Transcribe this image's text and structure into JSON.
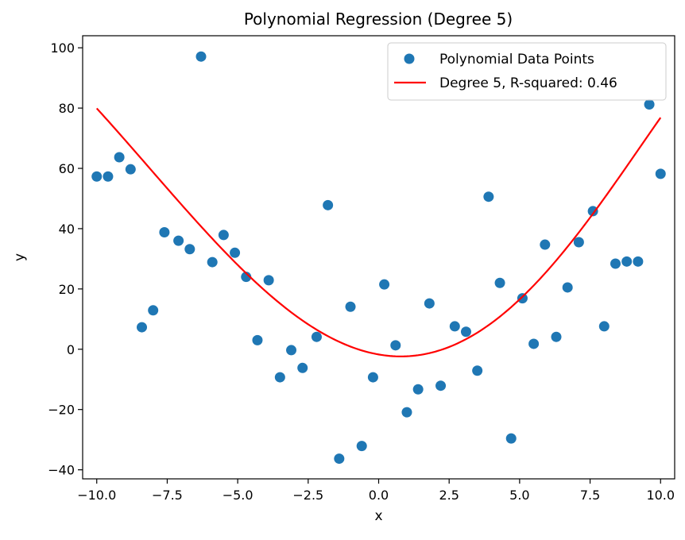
{
  "chart_data": {
    "type": "scatter",
    "title": "Polynomial Regression (Degree 5)",
    "xlabel": "x",
    "ylabel": "y",
    "xlim": [
      -10.5,
      10.5
    ],
    "ylim": [
      -43,
      104
    ],
    "x_ticks": [
      -10.0,
      -7.5,
      -5.0,
      -2.5,
      0.0,
      2.5,
      5.0,
      7.5,
      10.0
    ],
    "x_tick_labels": [
      "−10.0",
      "−7.5",
      "−5.0",
      "−2.5",
      "0.0",
      "2.5",
      "5.0",
      "7.5",
      "10.0"
    ],
    "y_ticks": [
      -40,
      -20,
      0,
      20,
      40,
      60,
      80,
      100
    ],
    "y_tick_labels": [
      "−40",
      "−20",
      "0",
      "20",
      "40",
      "60",
      "80",
      "100"
    ],
    "grid": false,
    "legend_position": "top-right",
    "series": [
      {
        "name": "Polynomial Data Points",
        "kind": "scatter",
        "color": "#1f77b4",
        "x": [
          -10.0,
          -9.6,
          -9.2,
          -8.8,
          -8.4,
          -8.0,
          -7.6,
          -7.1,
          -6.7,
          -6.3,
          -5.9,
          -5.5,
          -5.1,
          -4.7,
          -4.3,
          -3.9,
          -3.5,
          -3.1,
          -2.7,
          -2.2,
          -1.8,
          -1.4,
          -1.0,
          -0.6,
          -0.2,
          0.2,
          0.6,
          1.0,
          1.4,
          1.8,
          2.2,
          2.7,
          3.1,
          3.5,
          3.9,
          4.3,
          4.7,
          5.1,
          5.5,
          5.9,
          6.3,
          6.7,
          7.1,
          7.6,
          8.0,
          8.4,
          8.8,
          9.2,
          9.6,
          10.0
        ],
        "y": [
          57.3,
          57.3,
          63.7,
          59.7,
          7.3,
          12.9,
          38.8,
          36.0,
          33.2,
          97.1,
          28.9,
          37.9,
          32.0,
          24.0,
          3.0,
          22.9,
          -9.3,
          -0.3,
          -6.2,
          4.1,
          47.8,
          -36.3,
          14.1,
          -32.1,
          -9.3,
          21.5,
          1.3,
          -20.9,
          -13.3,
          15.2,
          -12.1,
          7.6,
          5.8,
          -7.1,
          50.6,
          22.0,
          -29.6,
          16.9,
          1.8,
          34.7,
          4.1,
          20.5,
          35.5,
          45.8,
          7.6,
          28.4,
          29.1,
          29.1,
          81.2,
          58.2
        ]
      },
      {
        "name": "Degree 5, R-squared: 0.46",
        "kind": "line",
        "color": "#ff0000",
        "poly_coefficients_ascending": [
          -1.7357,
          -1.6307,
          1.0117,
          0.02105,
          -0.002106,
          -6.28e-05
        ]
      }
    ]
  }
}
